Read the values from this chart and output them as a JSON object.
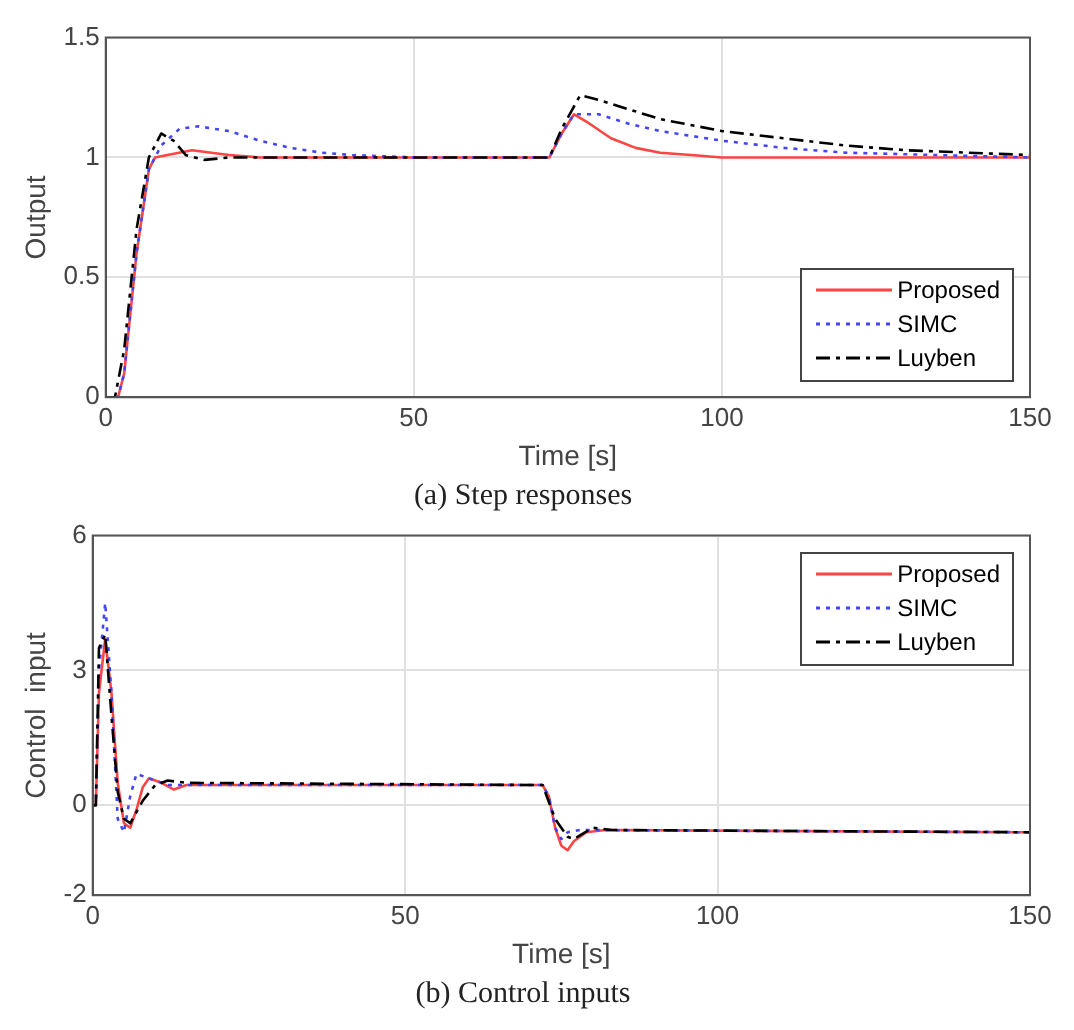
{
  "chart_data": [
    {
      "type": "line",
      "title": "(a) Step responses",
      "xlabel": "Time [s]",
      "ylabel": "Output",
      "xlim": [
        0,
        150
      ],
      "xticks": [
        0,
        50,
        100,
        150
      ],
      "ylim": [
        0,
        1.5
      ],
      "yticks": [
        0,
        0.5,
        1,
        1.5
      ],
      "grid": true,
      "legend": "bottom right",
      "series": [
        {
          "name": "Proposed",
          "color": "#ff4444",
          "line_style": "solid",
          "x": [
            0,
            2,
            3,
            5,
            7,
            8,
            10,
            14,
            20,
            25,
            72,
            74,
            76,
            78,
            82,
            86,
            90,
            95,
            100,
            150
          ],
          "values": [
            0,
            0,
            0.1,
            0.6,
            0.95,
            1.0,
            1.01,
            1.03,
            1.01,
            1.0,
            1.0,
            1.1,
            1.18,
            1.15,
            1.08,
            1.04,
            1.02,
            1.01,
            1.0,
            1.0
          ]
        },
        {
          "name": "SIMC",
          "color": "#4444ff",
          "line_style": "dotted",
          "x": [
            0,
            2,
            3,
            5,
            7,
            9,
            12,
            15,
            20,
            25,
            30,
            35,
            40,
            50,
            72,
            74,
            76,
            80,
            85,
            90,
            100,
            110,
            120,
            135,
            150
          ],
          "values": [
            0,
            0,
            0.1,
            0.6,
            0.95,
            1.05,
            1.12,
            1.13,
            1.11,
            1.07,
            1.04,
            1.02,
            1.01,
            1.0,
            1.0,
            1.1,
            1.18,
            1.18,
            1.14,
            1.11,
            1.07,
            1.04,
            1.02,
            1.01,
            1.0
          ]
        },
        {
          "name": "Luyben",
          "color": "#000000",
          "line_style": "dashdot",
          "x": [
            0,
            1.5,
            3,
            5,
            7,
            9,
            11,
            13,
            16,
            20,
            72,
            74,
            77,
            80,
            85,
            90,
            100,
            110,
            120,
            130,
            140,
            150
          ],
          "values": [
            0,
            0,
            0.2,
            0.7,
            1.0,
            1.1,
            1.07,
            1.01,
            0.99,
            1.0,
            1.0,
            1.12,
            1.26,
            1.24,
            1.2,
            1.16,
            1.11,
            1.08,
            1.05,
            1.03,
            1.02,
            1.01
          ]
        }
      ]
    },
    {
      "type": "line",
      "title": "(b) Control inputs",
      "xlabel": "Time [s]",
      "ylabel": "Control  input",
      "xlim": [
        0,
        150
      ],
      "xticks": [
        0,
        50,
        100,
        150
      ],
      "ylim": [
        -2,
        6
      ],
      "yticks": [
        -2,
        0,
        3,
        6
      ],
      "grid": true,
      "legend": "top right",
      "series": [
        {
          "name": "Proposed",
          "color": "#ff4444",
          "line_style": "solid",
          "x": [
            0,
            0.5,
            1,
            2,
            3,
            4,
            5,
            6,
            7,
            8,
            9,
            11,
            13,
            15,
            20,
            72,
            73,
            74,
            75,
            76,
            77,
            79,
            82,
            150
          ],
          "values": [
            0,
            0,
            2.5,
            3.7,
            2.5,
            0.5,
            -0.4,
            -0.5,
            -0.1,
            0.4,
            0.6,
            0.5,
            0.35,
            0.45,
            0.45,
            0.45,
            0.2,
            -0.5,
            -0.9,
            -1.0,
            -0.8,
            -0.6,
            -0.55,
            -0.6
          ]
        },
        {
          "name": "SIMC",
          "color": "#4444ff",
          "line_style": "dotted",
          "x": [
            0,
            0.5,
            1,
            2,
            3,
            4,
            5,
            6,
            7,
            9,
            12,
            72,
            73,
            74,
            75,
            76,
            78,
            150
          ],
          "values": [
            0,
            0,
            3,
            4.5,
            2.5,
            -0.3,
            -0.6,
            0.2,
            0.7,
            0.6,
            0.45,
            0.45,
            0.2,
            -0.5,
            -0.75,
            -0.6,
            -0.55,
            -0.6
          ]
        },
        {
          "name": "Luyben",
          "color": "#000000",
          "line_style": "dashdot",
          "x": [
            0,
            0.5,
            1,
            2,
            3,
            4,
            5,
            6,
            8,
            10,
            12,
            15,
            72,
            74,
            76,
            77,
            80,
            83,
            150
          ],
          "values": [
            0,
            0,
            3.5,
            3.8,
            2,
            0.3,
            -0.3,
            -0.4,
            0.1,
            0.45,
            0.55,
            0.5,
            0.45,
            -0.3,
            -0.7,
            -0.75,
            -0.5,
            -0.55,
            -0.6
          ]
        }
      ]
    }
  ]
}
